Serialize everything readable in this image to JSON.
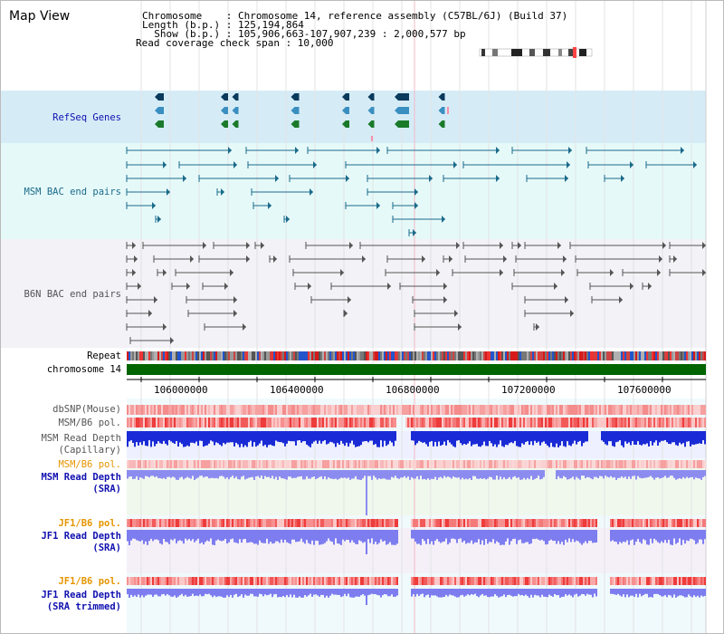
{
  "header": {
    "title": "Map View",
    "chromosome_label": "Chromosome    ",
    "chromosome_value": ": Chromosome 14, reference assembly (C57BL/6J) (Build 37)",
    "length_label": "Length (b.p.) ",
    "length_value": ": 125,194,864",
    "show_label": "  Show (b.p.) ",
    "show_value": ": 105,906,663-107,907,239 : 2,000,577 bp",
    "coverage_line": "Read coverage check span : 10,000"
  },
  "tracks": {
    "refseq_label": "RefSeq Genes",
    "msm_bac_label": "MSM BAC end pairs",
    "b6n_bac_label": "B6N BAC end pairs",
    "repeat_label": "Repeat",
    "chromosome_label": "chromosome 14",
    "dbsnp_label": "dbSNP(Mouse)",
    "msm_b6_pol_label": "MSM/B6 pol.",
    "msm_depth_cap_label": "MSM Read Depth",
    "msm_depth_cap_sub": "(Capillary)",
    "msm_b6_pol2_label": "MSM/B6 pol.",
    "msm_depth_sra_label": "MSM Read Depth",
    "msm_depth_sra_sub": "(SRA)",
    "jf1_pol_label": "JF1/B6 pol.",
    "jf1_depth_sra_label": "JF1 Read Depth",
    "jf1_depth_sra_sub": "(SRA)",
    "jf1_pol2_label": "JF1/B6 pol.",
    "jf1_depth_trim_label": "JF1 Read Depth",
    "jf1_depth_trim_sub": "(SRA trimmed)"
  },
  "axis": {
    "ticks": [
      "106000000",
      "106400000",
      "106800000",
      "107200000",
      "107600000"
    ]
  },
  "colors": {
    "refseq_bg": "#d5ecf7",
    "msm_bg": "#e6f9f9",
    "b6n_bg": "#f2f2f7",
    "lower_bg": "#f0fafc",
    "msm_line": "#1b6b8a",
    "b6n_line": "#555555",
    "chromosome_bar": "#006400",
    "label_blue": "#1010b0",
    "label_gray": "#555555",
    "label_orange": "#e69500",
    "label_teal": "#1b6b8a"
  }
}
